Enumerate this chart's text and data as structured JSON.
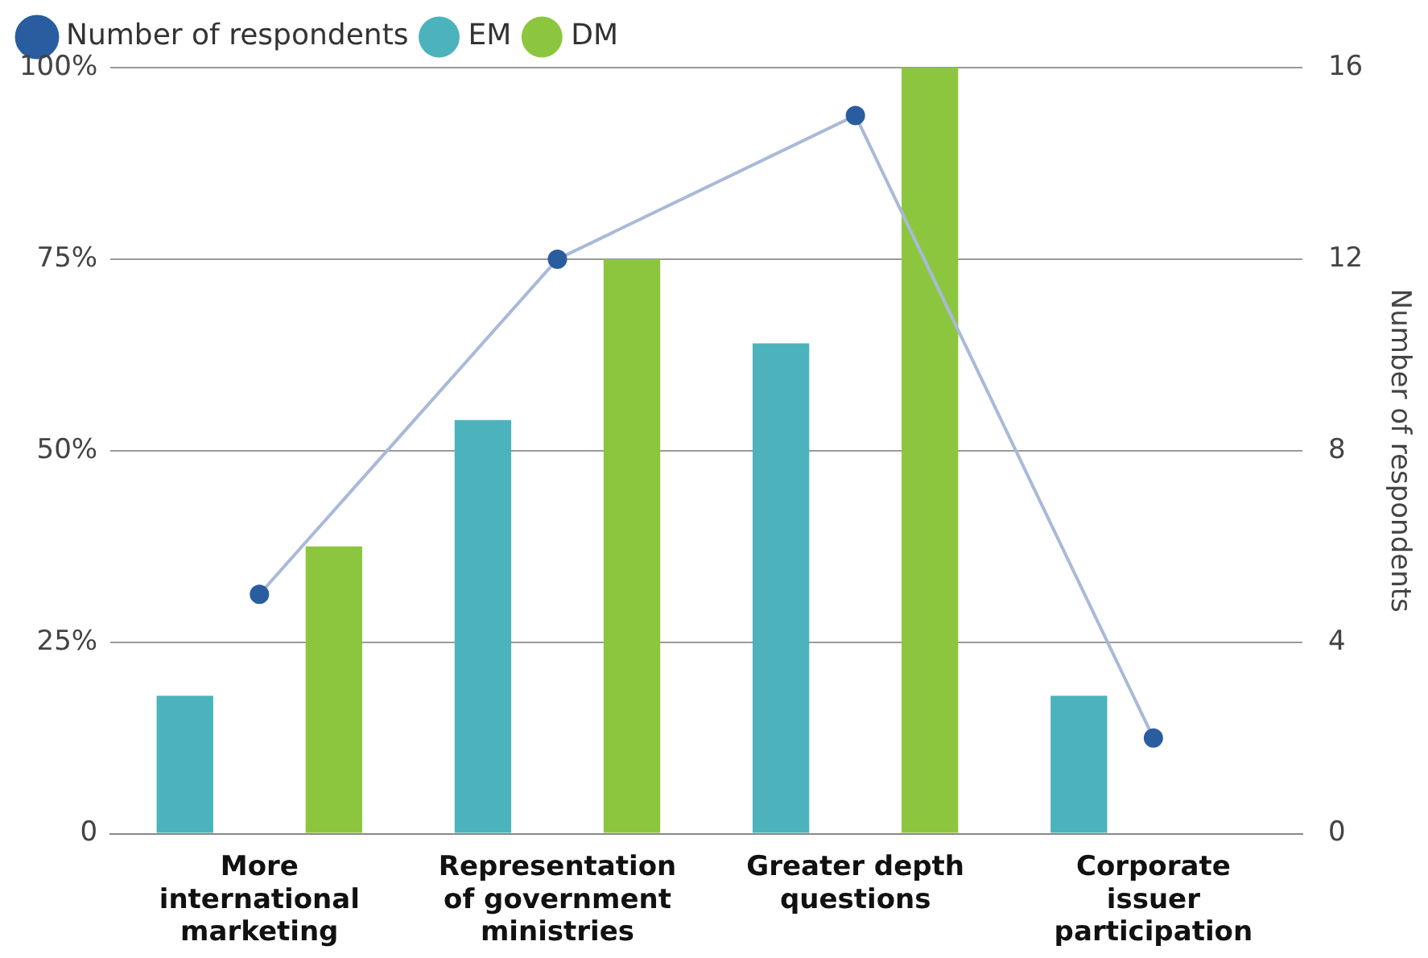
{
  "chart_data": {
    "type": "bar",
    "categories": [
      "More international marketing",
      "Representation of government ministries",
      "Greater depth questions",
      "Corporate issuer participation"
    ],
    "series": [
      {
        "name": "Number of respondents",
        "type": "line",
        "axis": "y2",
        "color": "#a9b9d9",
        "values": [
          5,
          12,
          15,
          2
        ]
      },
      {
        "name": "EM",
        "color": "#4cb3bd",
        "values": [
          18,
          54,
          64,
          18
        ]
      },
      {
        "name": "DM",
        "color": "#8cc63f",
        "values": [
          37.5,
          75,
          100,
          null
        ]
      }
    ],
    "ylim": [
      0,
      100
    ],
    "yticks": [
      {
        "value": 0,
        "label": "0"
      },
      {
        "value": 25,
        "label": "25%"
      },
      {
        "value": 50,
        "label": "50%"
      },
      {
        "value": 75,
        "label": "75%"
      },
      {
        "value": 100,
        "label": "100%"
      }
    ],
    "y2lim": [
      0,
      16
    ],
    "y2ticks": [
      0,
      4,
      8,
      12,
      16
    ],
    "y2label": "Number of respondents",
    "grid": "y",
    "legend": "top left",
    "marker": "circle"
  }
}
